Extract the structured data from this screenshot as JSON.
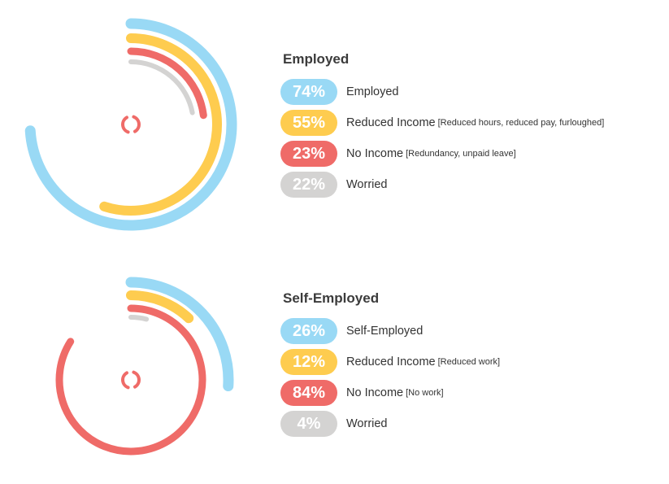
{
  "colors": {
    "blue": "#99d9f5",
    "yellow": "#fecc4f",
    "red": "#ef6b68",
    "gray": "#d4d3d2"
  },
  "chart_data": [
    {
      "type": "radial-bar",
      "title": "Employed",
      "center_icon": "refresh-ring-icon",
      "series": [
        {
          "value": 74,
          "display": "74%",
          "label": "Employed",
          "note": "",
          "color": "blue"
        },
        {
          "value": 55,
          "display": "55%",
          "label": "Reduced Income",
          "note": "[Reduced hours, reduced pay, furloughed]",
          "color": "yellow"
        },
        {
          "value": 23,
          "display": "23%",
          "label": "No Income",
          "note": "[Redundancy, unpaid leave]",
          "color": "red"
        },
        {
          "value": 22,
          "display": "22%",
          "label": "Worried",
          "note": "",
          "color": "gray"
        }
      ]
    },
    {
      "type": "radial-bar",
      "title": "Self-Employed",
      "center_icon": "refresh-ring-icon",
      "series": [
        {
          "value": 26,
          "display": "26%",
          "label": "Self-Employed",
          "note": "",
          "color": "blue"
        },
        {
          "value": 12,
          "display": "12%",
          "label": "Reduced Income",
          "note": "[Reduced work]",
          "color": "yellow"
        },
        {
          "value": 84,
          "display": "84%",
          "label": "No Income",
          "note": "[No work]",
          "color": "red"
        },
        {
          "value": 4,
          "display": "4%",
          "label": "Worried",
          "note": "",
          "color": "gray"
        }
      ]
    }
  ]
}
